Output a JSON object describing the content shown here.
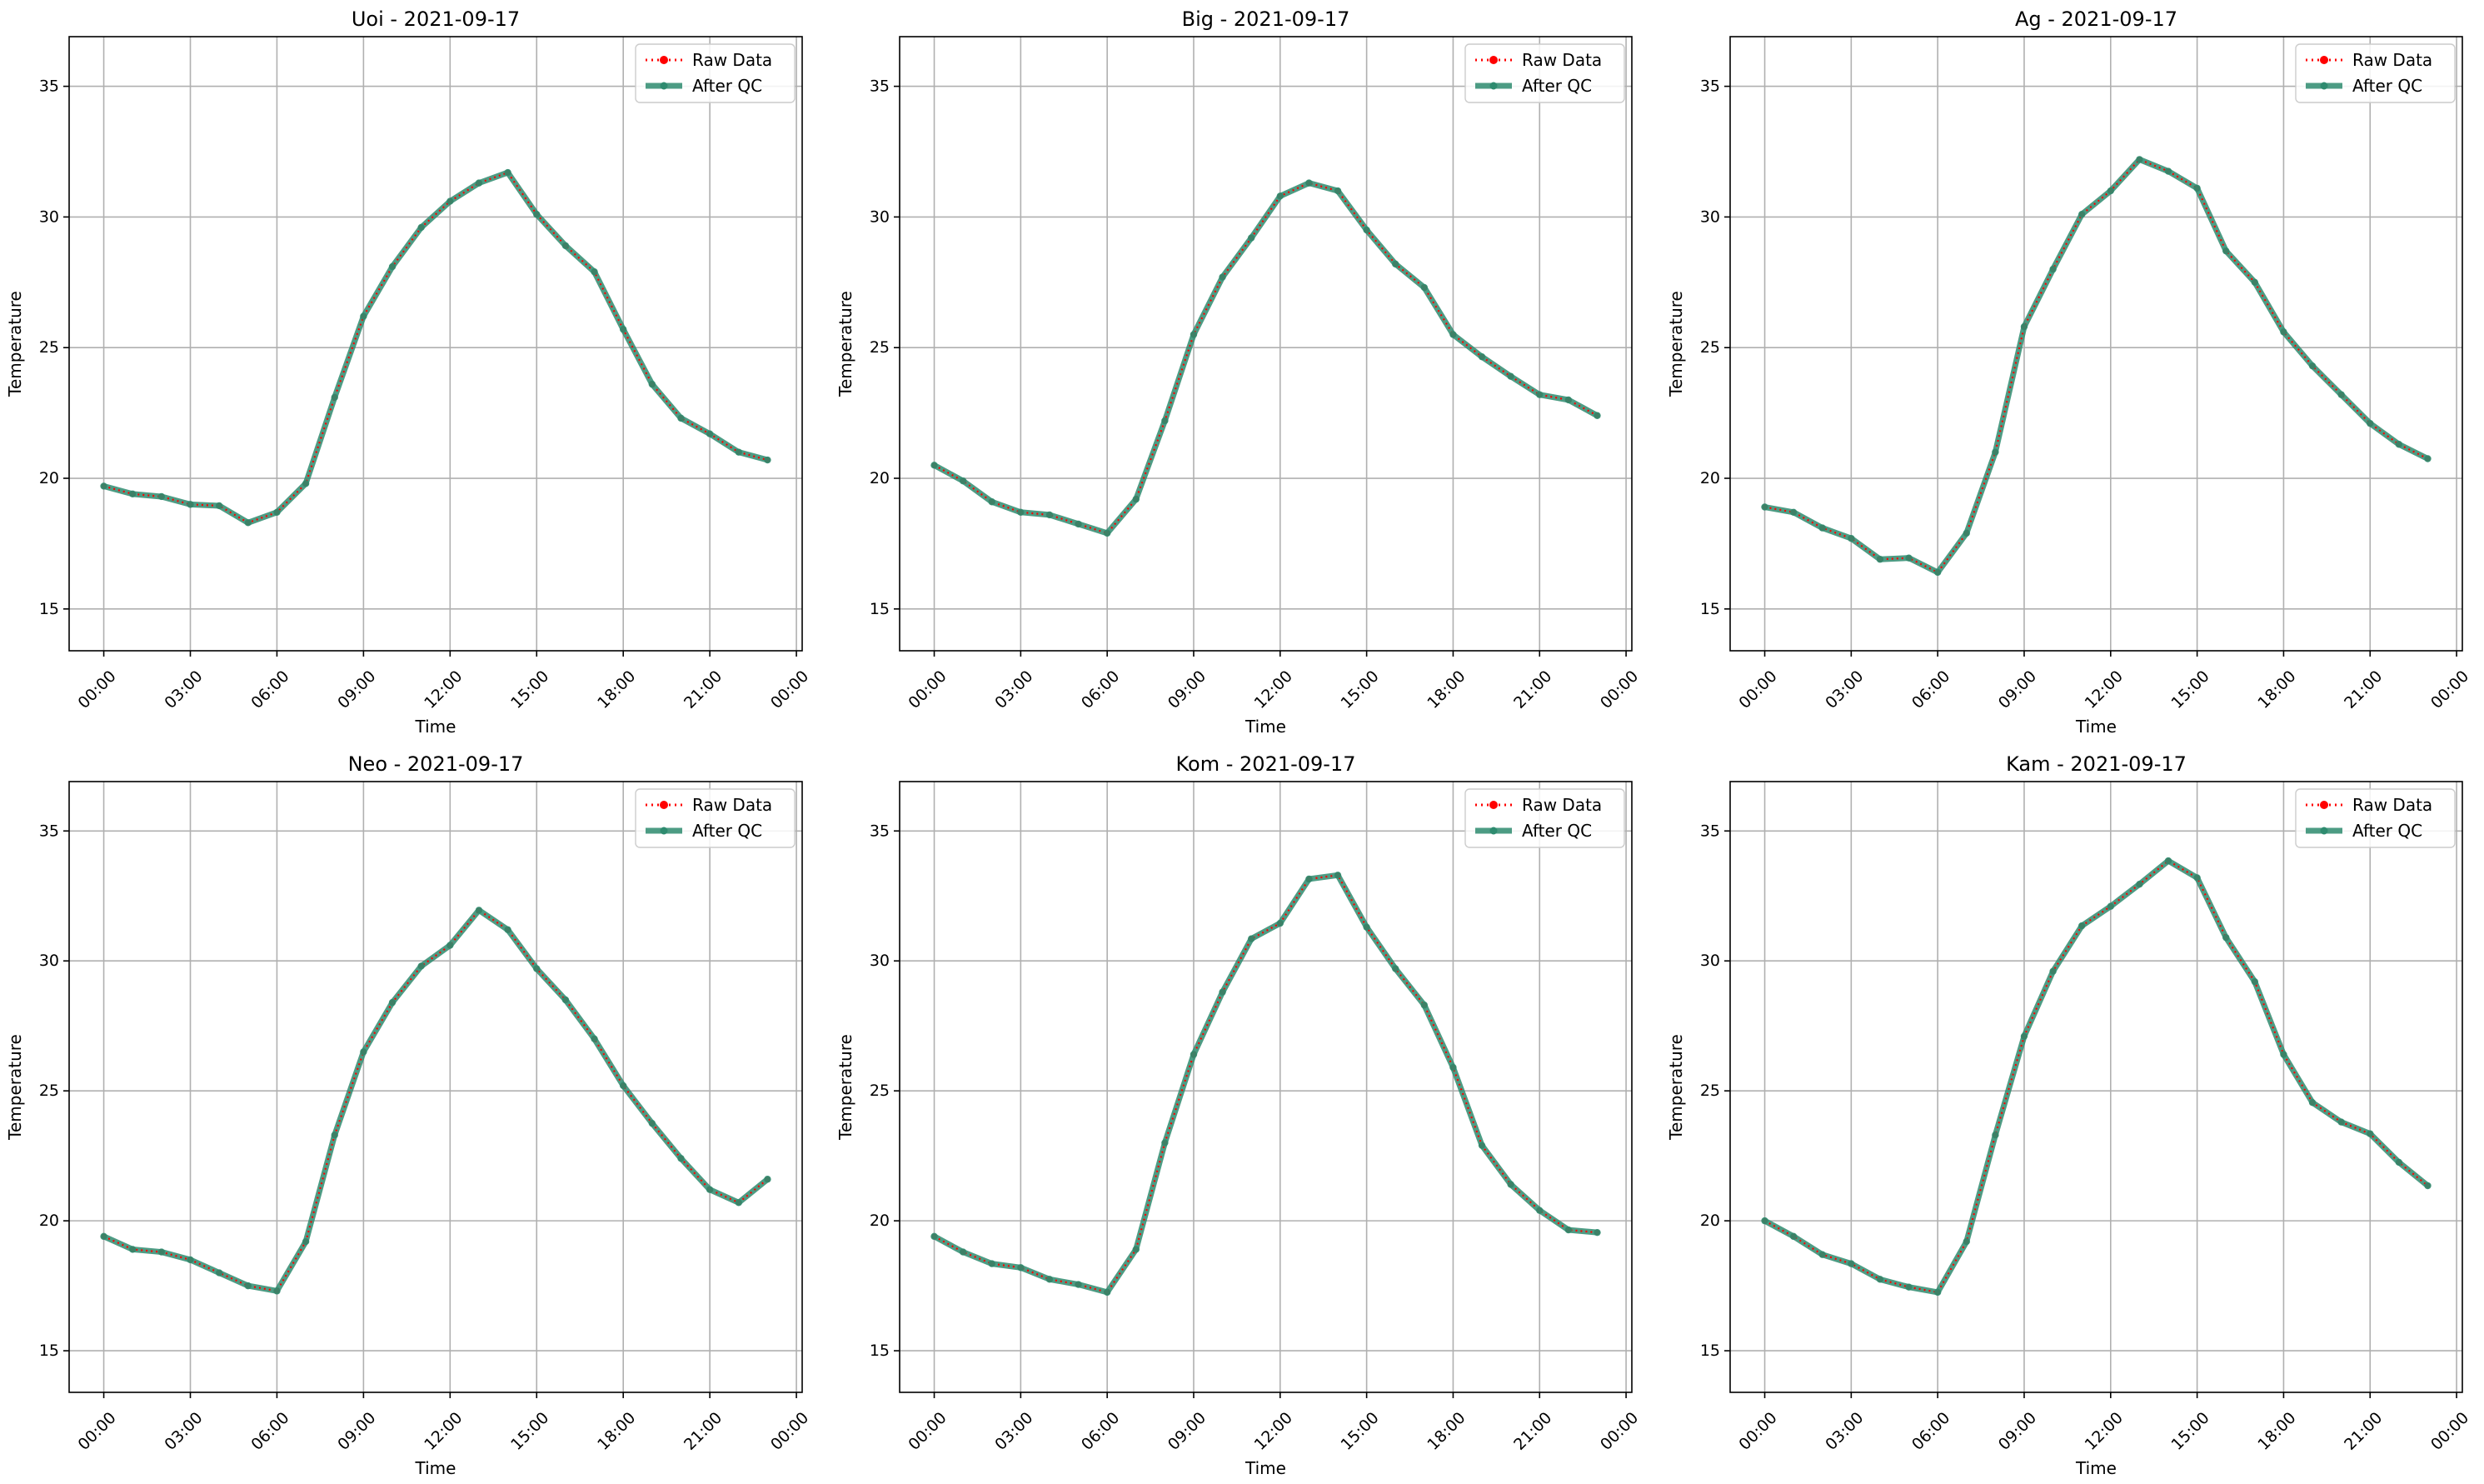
{
  "colors": {
    "raw": "#ff0000",
    "qc": "#2e8b6f",
    "grid": "#b0b0b0",
    "axis": "#000000"
  },
  "chart_data": [
    {
      "type": "line",
      "title": "Uoi - 2021-09-17",
      "xlabel": "Time",
      "ylabel": "Temperature",
      "x_tick_labels": [
        "00:00",
        "03:00",
        "06:00",
        "09:00",
        "12:00",
        "15:00",
        "18:00",
        "21:00",
        "00:00"
      ],
      "x_ticks_hours": [
        0,
        3,
        6,
        9,
        12,
        15,
        18,
        21,
        24
      ],
      "y_ticks": [
        15,
        20,
        25,
        30,
        35
      ],
      "xlim_hours": [
        -1.2,
        24.2
      ],
      "ylim": [
        13.4,
        36.9
      ],
      "grid": true,
      "legend_position": "top-right",
      "x_hours": [
        0,
        1,
        2,
        3,
        4,
        5,
        6,
        7,
        8,
        9,
        10,
        11,
        12,
        13,
        14,
        15,
        16,
        17,
        18,
        19,
        20,
        21,
        22,
        23
      ],
      "series": [
        {
          "name": "Raw Data",
          "style": "dotted",
          "values": [
            19.7,
            19.4,
            19.3,
            19.0,
            18.95,
            18.3,
            18.7,
            19.8,
            23.1,
            26.2,
            28.1,
            29.6,
            30.6,
            31.3,
            31.7,
            30.1,
            28.9,
            27.9,
            25.7,
            23.6,
            22.3,
            21.7,
            21.0,
            20.7
          ]
        },
        {
          "name": "After QC",
          "style": "solid",
          "values": [
            19.7,
            19.4,
            19.3,
            19.0,
            18.95,
            18.3,
            18.7,
            19.8,
            23.1,
            26.2,
            28.1,
            29.6,
            30.6,
            31.3,
            31.7,
            30.1,
            28.9,
            27.9,
            25.7,
            23.6,
            22.3,
            21.7,
            21.0,
            20.7
          ]
        }
      ]
    },
    {
      "type": "line",
      "title": "Big - 2021-09-17",
      "xlabel": "Time",
      "ylabel": "Temperature",
      "x_tick_labels": [
        "00:00",
        "03:00",
        "06:00",
        "09:00",
        "12:00",
        "15:00",
        "18:00",
        "21:00",
        "00:00"
      ],
      "x_ticks_hours": [
        0,
        3,
        6,
        9,
        12,
        15,
        18,
        21,
        24
      ],
      "y_ticks": [
        15,
        20,
        25,
        30,
        35
      ],
      "xlim_hours": [
        -1.2,
        24.2
      ],
      "ylim": [
        13.4,
        36.9
      ],
      "grid": true,
      "legend_position": "top-right",
      "x_hours": [
        0,
        1,
        2,
        3,
        4,
        5,
        6,
        7,
        8,
        9,
        10,
        11,
        12,
        13,
        14,
        15,
        16,
        17,
        18,
        19,
        20,
        21,
        22,
        23
      ],
      "series": [
        {
          "name": "Raw Data",
          "style": "dotted",
          "values": [
            20.5,
            19.9,
            19.1,
            18.7,
            18.6,
            18.25,
            17.9,
            19.2,
            22.2,
            25.5,
            27.7,
            29.2,
            30.8,
            31.3,
            31.0,
            29.5,
            28.2,
            27.3,
            25.5,
            24.65,
            23.9,
            23.2,
            23.0,
            22.4
          ]
        },
        {
          "name": "After QC",
          "style": "solid",
          "values": [
            20.5,
            19.9,
            19.1,
            18.7,
            18.6,
            18.25,
            17.9,
            19.2,
            22.2,
            25.5,
            27.7,
            29.2,
            30.8,
            31.3,
            31.0,
            29.5,
            28.2,
            27.3,
            25.5,
            24.65,
            23.9,
            23.2,
            23.0,
            22.4
          ]
        }
      ]
    },
    {
      "type": "line",
      "title": "Ag - 2021-09-17",
      "xlabel": "Time",
      "ylabel": "Temperature",
      "x_tick_labels": [
        "00:00",
        "03:00",
        "06:00",
        "09:00",
        "12:00",
        "15:00",
        "18:00",
        "21:00",
        "00:00"
      ],
      "x_ticks_hours": [
        0,
        3,
        6,
        9,
        12,
        15,
        18,
        21,
        24
      ],
      "y_ticks": [
        15,
        20,
        25,
        30,
        35
      ],
      "xlim_hours": [
        -1.2,
        24.2
      ],
      "ylim": [
        13.4,
        36.9
      ],
      "grid": true,
      "legend_position": "top-right",
      "x_hours": [
        0,
        1,
        2,
        3,
        4,
        5,
        6,
        7,
        8,
        9,
        10,
        11,
        12,
        13,
        14,
        15,
        16,
        17,
        18,
        19,
        20,
        21,
        22,
        23
      ],
      "series": [
        {
          "name": "Raw Data",
          "style": "dotted",
          "values": [
            18.9,
            18.7,
            18.1,
            17.7,
            16.9,
            16.95,
            16.4,
            17.9,
            21.0,
            25.8,
            28.0,
            30.1,
            31.0,
            32.2,
            31.75,
            31.1,
            28.7,
            27.5,
            25.6,
            24.3,
            23.2,
            22.1,
            21.3,
            20.75
          ]
        },
        {
          "name": "After QC",
          "style": "solid",
          "values": [
            18.9,
            18.7,
            18.1,
            17.7,
            16.9,
            16.95,
            16.4,
            17.9,
            21.0,
            25.8,
            28.0,
            30.1,
            31.0,
            32.2,
            31.75,
            31.1,
            28.7,
            27.5,
            25.6,
            24.3,
            23.2,
            22.1,
            21.3,
            20.75
          ]
        }
      ]
    },
    {
      "type": "line",
      "title": "Neo - 2021-09-17",
      "xlabel": "Time",
      "ylabel": "Temperature",
      "x_tick_labels": [
        "00:00",
        "03:00",
        "06:00",
        "09:00",
        "12:00",
        "15:00",
        "18:00",
        "21:00",
        "00:00"
      ],
      "x_ticks_hours": [
        0,
        3,
        6,
        9,
        12,
        15,
        18,
        21,
        24
      ],
      "y_ticks": [
        15,
        20,
        25,
        30,
        35
      ],
      "xlim_hours": [
        -1.2,
        24.2
      ],
      "ylim": [
        13.4,
        36.9
      ],
      "grid": true,
      "legend_position": "top-right",
      "x_hours": [
        0,
        1,
        2,
        3,
        4,
        5,
        6,
        7,
        8,
        9,
        10,
        11,
        12,
        13,
        14,
        15,
        16,
        17,
        18,
        19,
        20,
        21,
        22,
        23
      ],
      "series": [
        {
          "name": "Raw Data",
          "style": "dotted",
          "values": [
            19.4,
            18.9,
            18.8,
            18.5,
            18.0,
            17.5,
            17.3,
            19.2,
            23.3,
            26.5,
            28.4,
            29.8,
            30.6,
            31.95,
            31.2,
            29.7,
            28.5,
            27.0,
            25.2,
            23.75,
            22.4,
            21.2,
            20.7,
            21.6
          ]
        },
        {
          "name": "After QC",
          "style": "solid",
          "values": [
            19.4,
            18.9,
            18.8,
            18.5,
            18.0,
            17.5,
            17.3,
            19.2,
            23.3,
            26.5,
            28.4,
            29.8,
            30.6,
            31.95,
            31.2,
            29.7,
            28.5,
            27.0,
            25.2,
            23.75,
            22.4,
            21.2,
            20.7,
            21.6
          ]
        }
      ]
    },
    {
      "type": "line",
      "title": "Kom - 2021-09-17",
      "xlabel": "Time",
      "ylabel": "Temperature",
      "x_tick_labels": [
        "00:00",
        "03:00",
        "06:00",
        "09:00",
        "12:00",
        "15:00",
        "18:00",
        "21:00",
        "00:00"
      ],
      "x_ticks_hours": [
        0,
        3,
        6,
        9,
        12,
        15,
        18,
        21,
        24
      ],
      "y_ticks": [
        15,
        20,
        25,
        30,
        35
      ],
      "xlim_hours": [
        -1.2,
        24.2
      ],
      "ylim": [
        13.4,
        36.9
      ],
      "grid": true,
      "legend_position": "top-right",
      "x_hours": [
        0,
        1,
        2,
        3,
        4,
        5,
        6,
        7,
        8,
        9,
        10,
        11,
        12,
        13,
        14,
        15,
        16,
        17,
        18,
        19,
        20,
        21,
        22,
        23
      ],
      "series": [
        {
          "name": "Raw Data",
          "style": "dotted",
          "values": [
            19.4,
            18.8,
            18.35,
            18.2,
            17.75,
            17.55,
            17.25,
            18.9,
            23.0,
            26.4,
            28.8,
            30.85,
            31.45,
            33.15,
            33.3,
            31.3,
            29.7,
            28.3,
            25.9,
            22.9,
            21.4,
            20.4,
            19.65,
            19.55
          ]
        },
        {
          "name": "After QC",
          "style": "solid",
          "values": [
            19.4,
            18.8,
            18.35,
            18.2,
            17.75,
            17.55,
            17.25,
            18.9,
            23.0,
            26.4,
            28.8,
            30.85,
            31.45,
            33.15,
            33.3,
            31.3,
            29.7,
            28.3,
            25.9,
            22.9,
            21.4,
            20.4,
            19.65,
            19.55
          ]
        }
      ]
    },
    {
      "type": "line",
      "title": "Kam - 2021-09-17",
      "xlabel": "Time",
      "ylabel": "Temperature",
      "x_tick_labels": [
        "00:00",
        "03:00",
        "06:00",
        "09:00",
        "12:00",
        "15:00",
        "18:00",
        "21:00",
        "00:00"
      ],
      "x_ticks_hours": [
        0,
        3,
        6,
        9,
        12,
        15,
        18,
        21,
        24
      ],
      "y_ticks": [
        15,
        20,
        25,
        30,
        35
      ],
      "xlim_hours": [
        -1.2,
        24.2
      ],
      "ylim": [
        13.4,
        36.9
      ],
      "grid": true,
      "legend_position": "top-right",
      "x_hours": [
        0,
        1,
        2,
        3,
        4,
        5,
        6,
        7,
        8,
        9,
        10,
        11,
        12,
        13,
        14,
        15,
        16,
        17,
        18,
        19,
        20,
        21,
        22,
        23
      ],
      "series": [
        {
          "name": "Raw Data",
          "style": "dotted",
          "values": [
            20.0,
            19.4,
            18.7,
            18.35,
            17.75,
            17.45,
            17.25,
            19.2,
            23.3,
            27.1,
            29.6,
            31.35,
            32.1,
            32.95,
            33.85,
            33.2,
            30.9,
            29.2,
            26.4,
            24.55,
            23.8,
            23.35,
            22.25,
            21.35
          ]
        },
        {
          "name": "After QC",
          "style": "solid",
          "values": [
            20.0,
            19.4,
            18.7,
            18.35,
            17.75,
            17.45,
            17.25,
            19.2,
            23.3,
            27.1,
            29.6,
            31.35,
            32.1,
            32.95,
            33.85,
            33.2,
            30.9,
            29.2,
            26.4,
            24.55,
            23.8,
            23.35,
            22.25,
            21.35
          ]
        }
      ]
    }
  ]
}
